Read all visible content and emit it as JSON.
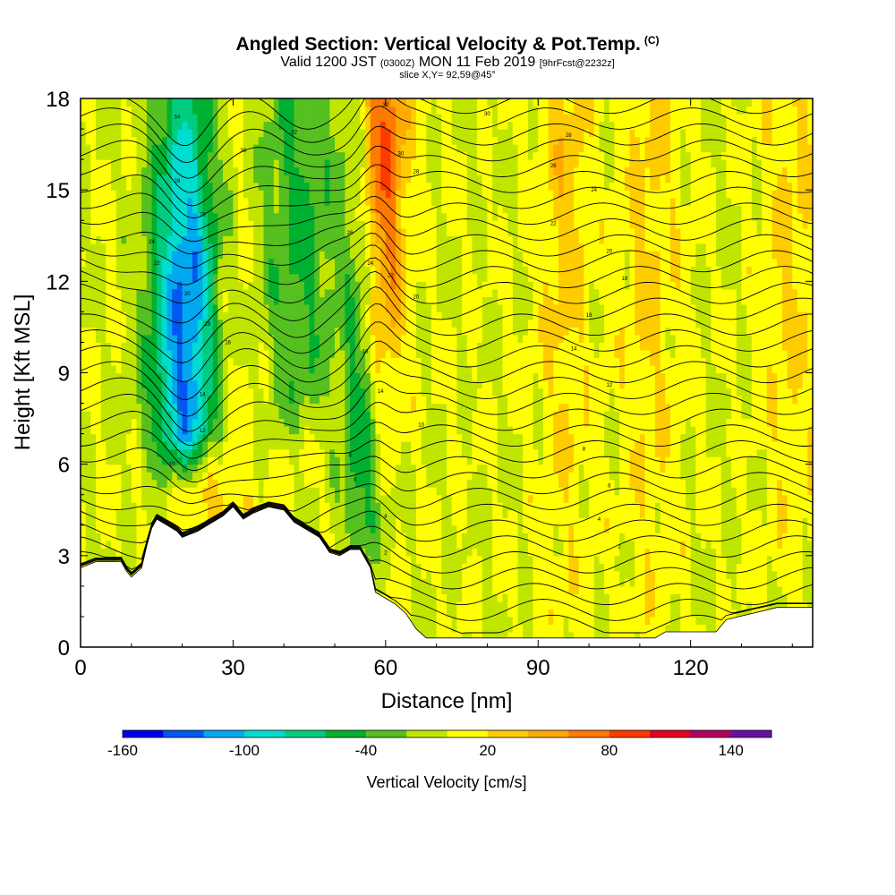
{
  "header": {
    "title": "Angled Section: Vertical Velocity & Pot.Temp.",
    "title_tag": "(C)",
    "valid_prefix": "Valid 1200 JST",
    "valid_zulu": "(0300Z)",
    "valid_date": "MON 11 Feb 2019",
    "forecast_tag": "[9hrFcst@2232z]",
    "slice_info": "slice X,Y= 92,59@45°"
  },
  "chart_data": {
    "type": "heatmap",
    "title": "Angled Section: Vertical Velocity & Pot.Temp.",
    "xlabel": "Distance [nm]",
    "ylabel": "Height [Kft MSL]",
    "xlim": [
      0,
      144
    ],
    "ylim": [
      0,
      18
    ],
    "x_ticks": [
      0,
      30,
      60,
      90,
      120
    ],
    "y_ticks": [
      0,
      3,
      6,
      9,
      12,
      15,
      18
    ],
    "x_tick_labels": [
      "0",
      "30",
      "60",
      "90",
      "120"
    ],
    "y_tick_labels": [
      "0",
      "3",
      "6",
      "9",
      "12",
      "15",
      "18"
    ],
    "colorbar": {
      "label": "Vertical Velocity [cm/s]",
      "min": -160,
      "max": 160,
      "step": 20,
      "tick_values": [
        -160,
        -100,
        -40,
        20,
        80,
        140
      ],
      "tick_labels": [
        "-160",
        "-100",
        "-40",
        "20",
        "80",
        "140"
      ],
      "colors": [
        "#0000ee",
        "#0058f0",
        "#00a8f0",
        "#00dcd0",
        "#00cc80",
        "#00b030",
        "#55c020",
        "#c0e600",
        "#ffff00",
        "#ffcc00",
        "#ffaa00",
        "#ff7a00",
        "#ff3a00",
        "#e00020",
        "#b00060",
        "#6a10a0"
      ]
    },
    "terrain_kft": [
      [
        0,
        2.6
      ],
      [
        3,
        2.8
      ],
      [
        8,
        2.8
      ],
      [
        9,
        2.5
      ],
      [
        10,
        2.3
      ],
      [
        12,
        2.6
      ],
      [
        13,
        3.3
      ],
      [
        14,
        3.9
      ],
      [
        15,
        4.2
      ],
      [
        17,
        4.0
      ],
      [
        19,
        3.8
      ],
      [
        20,
        3.6
      ],
      [
        23,
        3.8
      ],
      [
        25,
        4.0
      ],
      [
        28,
        4.3
      ],
      [
        30,
        4.6
      ],
      [
        32,
        4.2
      ],
      [
        34,
        4.4
      ],
      [
        37,
        4.6
      ],
      [
        40,
        4.5
      ],
      [
        42,
        4.1
      ],
      [
        44,
        3.9
      ],
      [
        47,
        3.6
      ],
      [
        49,
        3.1
      ],
      [
        51,
        3.0
      ],
      [
        53,
        3.2
      ],
      [
        55,
        3.2
      ],
      [
        57,
        2.6
      ],
      [
        58,
        1.8
      ],
      [
        60,
        1.6
      ],
      [
        62,
        1.4
      ],
      [
        64,
        1.1
      ],
      [
        66,
        0.6
      ],
      [
        68,
        0.3
      ],
      [
        80,
        0.3
      ],
      [
        100,
        0.3
      ],
      [
        113,
        0.3
      ],
      [
        115,
        0.5
      ],
      [
        125,
        0.5
      ],
      [
        127,
        0.9
      ],
      [
        137,
        1.3
      ],
      [
        144,
        1.3
      ]
    ],
    "features": [
      {
        "type": "downdraft",
        "x_center": 21,
        "width": 7,
        "z_bottom": 6.5,
        "z_top": 18,
        "peak_cms": -130,
        "peak_z": 10.5
      },
      {
        "type": "downdraft",
        "x_center": 43,
        "width": 8,
        "z_bottom": 7.5,
        "z_top": 18,
        "peak_cms": -45,
        "peak_z": 14
      },
      {
        "type": "downdraft",
        "x_center": 55,
        "width": 3.5,
        "z_bottom": 3.5,
        "z_top": 18,
        "peak_cms": -50,
        "peak_z": 6
      },
      {
        "type": "updraft",
        "x_center": 59.5,
        "width": 4.5,
        "z_bottom": 7.5,
        "z_top": 18,
        "peak_cms": 85,
        "peak_z": 17
      },
      {
        "type": "updraft",
        "x_center": 28,
        "width": 6,
        "z_bottom": 3.8,
        "z_top": 18,
        "peak_cms": 30,
        "peak_z": 8
      },
      {
        "type": "updraft",
        "x_center": 95,
        "width": 5,
        "z_bottom": 0.5,
        "z_top": 18,
        "peak_cms": 30,
        "peak_z": 16
      },
      {
        "type": "updraft",
        "x_center": 112,
        "width": 6,
        "z_bottom": 0.5,
        "z_top": 18,
        "peak_cms": 25,
        "peak_z": 14
      },
      {
        "type": "updraft",
        "x_center": 140,
        "width": 6,
        "z_bottom": 2,
        "z_top": 18,
        "peak_cms": 25,
        "peak_z": 14
      }
    ],
    "isentrope_labels": [
      {
        "x": 19,
        "z": 17.4,
        "text": "34"
      },
      {
        "x": 42,
        "z": 16.9,
        "text": "32"
      },
      {
        "x": 32,
        "z": 16.3,
        "text": "30"
      },
      {
        "x": 19,
        "z": 15.3,
        "text": "28"
      },
      {
        "x": 24,
        "z": 14.2,
        "text": "26"
      },
      {
        "x": 14,
        "z": 13.3,
        "text": "24"
      },
      {
        "x": 15,
        "z": 12.6,
        "text": "22"
      },
      {
        "x": 21,
        "z": 11.6,
        "text": "20"
      },
      {
        "x": 25,
        "z": 10.6,
        "text": "18"
      },
      {
        "x": 29,
        "z": 10.0,
        "text": "16"
      },
      {
        "x": 24,
        "z": 8.3,
        "text": "14"
      },
      {
        "x": 24,
        "z": 7.1,
        "text": "12"
      },
      {
        "x": 18,
        "z": 6.0,
        "text": "10"
      },
      {
        "x": 53,
        "z": 6.3,
        "text": "8"
      },
      {
        "x": 54,
        "z": 5.5,
        "text": "6"
      },
      {
        "x": 60,
        "z": 4.3,
        "text": "4"
      },
      {
        "x": 60,
        "z": 3.1,
        "text": "2"
      },
      {
        "x": 80,
        "z": 17.5,
        "text": "30"
      },
      {
        "x": 96,
        "z": 16.8,
        "text": "28"
      },
      {
        "x": 93,
        "z": 15.8,
        "text": "26"
      },
      {
        "x": 101,
        "z": 15.0,
        "text": "24"
      },
      {
        "x": 93,
        "z": 13.9,
        "text": "22"
      },
      {
        "x": 104,
        "z": 13.0,
        "text": "20"
      },
      {
        "x": 107,
        "z": 12.1,
        "text": "18"
      },
      {
        "x": 100,
        "z": 10.9,
        "text": "16"
      },
      {
        "x": 97,
        "z": 9.8,
        "text": "14"
      },
      {
        "x": 104,
        "z": 8.6,
        "text": "12"
      },
      {
        "x": 67,
        "z": 7.3,
        "text": "10"
      },
      {
        "x": 99,
        "z": 6.5,
        "text": "8"
      },
      {
        "x": 104,
        "z": 5.3,
        "text": "6"
      },
      {
        "x": 102,
        "z": 4.2,
        "text": "4"
      },
      {
        "x": 106,
        "z": 3.3,
        "text": "2"
      },
      {
        "x": 60,
        "z": 17.8,
        "text": "32"
      },
      {
        "x": 63,
        "z": 16.2,
        "text": "30"
      },
      {
        "x": 66,
        "z": 15.6,
        "text": "28"
      },
      {
        "x": 53,
        "z": 13.6,
        "text": "26"
      },
      {
        "x": 57,
        "z": 12.6,
        "text": "24"
      },
      {
        "x": 61,
        "z": 12.2,
        "text": "22"
      },
      {
        "x": 66,
        "z": 11.5,
        "text": "20"
      },
      {
        "x": 56,
        "z": 9.7,
        "text": "16"
      },
      {
        "x": 59,
        "z": 8.4,
        "text": "14"
      }
    ]
  }
}
